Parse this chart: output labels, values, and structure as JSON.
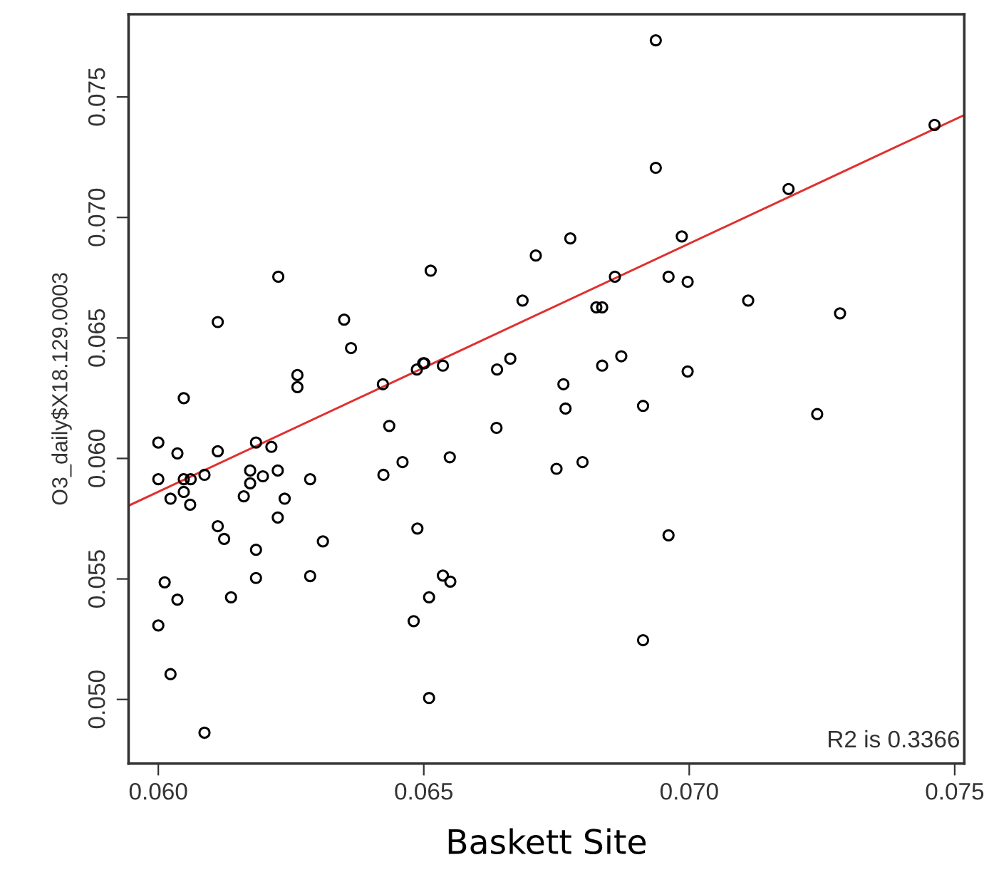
{
  "chart_data": {
    "type": "scatter",
    "xlabel": "Baskett Site",
    "ylabel": "O3_daily$X18.129.0003",
    "annotations": [
      "R2 is 0.3366"
    ],
    "grid": false,
    "legend": false,
    "xlim": [
      0.05944,
      0.07518
    ],
    "ylim": [
      0.04734,
      0.07843
    ],
    "xticks": [
      {
        "value": 0.06,
        "label": "0.060"
      },
      {
        "value": 0.065,
        "label": "0.065"
      },
      {
        "value": 0.07,
        "label": "0.070"
      },
      {
        "value": 0.075,
        "label": "0.075"
      }
    ],
    "yticks": [
      {
        "value": 0.05,
        "label": "0.050"
      },
      {
        "value": 0.055,
        "label": "0.055"
      },
      {
        "value": 0.06,
        "label": "0.060"
      },
      {
        "value": 0.065,
        "label": "0.065"
      },
      {
        "value": 0.07,
        "label": "0.070"
      },
      {
        "value": 0.075,
        "label": "0.075"
      }
    ],
    "series": [
      {
        "marker": "circle",
        "color": "#000000",
        "x": [
          0.06937,
          0.06937,
          0.06776,
          0.06711,
          0.06986,
          0.06513,
          0.0686,
          0.06961,
          0.06997,
          0.06686,
          0.06825,
          0.06836,
          0.06501,
          0.06536,
          0.06663,
          0.06638,
          0.06836,
          0.06872,
          0.06997,
          0.06763,
          0.06226,
          0.06112,
          0.0635,
          0.06363,
          0.06262,
          0.06262,
          0.06048,
          0.06423,
          0.06487,
          0.06499,
          0.07187,
          0.07462,
          0.07111,
          0.07284,
          0.06435,
          0.06,
          0.06036,
          0.06112,
          0.06184,
          0.06213,
          0.06,
          0.06048,
          0.06061,
          0.06087,
          0.06173,
          0.06197,
          0.06225,
          0.06173,
          0.06286,
          0.06424,
          0.0646,
          0.06023,
          0.06048,
          0.0606,
          0.06161,
          0.06238,
          0.06225,
          0.06112,
          0.06124,
          0.06184,
          0.0631,
          0.06488,
          0.06012,
          0.06036,
          0.06137,
          0.06184,
          0.06286,
          0.06,
          0.06481,
          0.0651,
          0.06023,
          0.0651,
          0.06087,
          0.06767,
          0.06913,
          0.06637,
          0.06549,
          0.0675,
          0.06799,
          0.06961,
          0.06536,
          0.0655,
          0.06913,
          0.07241
        ],
        "values": [
          0.07735,
          0.07206,
          0.06913,
          0.06842,
          0.06921,
          0.06779,
          0.06754,
          0.06754,
          0.06733,
          0.06655,
          0.06627,
          0.06627,
          0.06395,
          0.06385,
          0.06414,
          0.06369,
          0.06385,
          0.06424,
          0.06361,
          0.06308,
          0.06754,
          0.06566,
          0.06576,
          0.06458,
          0.06346,
          0.06296,
          0.0625,
          0.06308,
          0.06369,
          0.06395,
          0.07118,
          0.07384,
          0.06655,
          0.06602,
          0.06135,
          0.06066,
          0.06021,
          0.0603,
          0.06066,
          0.06048,
          0.05914,
          0.05914,
          0.05914,
          0.05932,
          0.0595,
          0.05926,
          0.0595,
          0.05897,
          0.05914,
          0.05932,
          0.05985,
          0.05833,
          0.05861,
          0.05808,
          0.05843,
          0.05833,
          0.05755,
          0.05719,
          0.05666,
          0.05621,
          0.05656,
          0.05709,
          0.05486,
          0.05414,
          0.05424,
          0.05504,
          0.05512,
          0.05307,
          0.05325,
          0.05424,
          0.05105,
          0.05006,
          0.04862,
          0.06207,
          0.06218,
          0.06127,
          0.06005,
          0.05957,
          0.05985,
          0.05681,
          0.05514,
          0.05489,
          0.05246,
          0.06184
        ]
      },
      {
        "type": "line",
        "color": "#e03030",
        "x": [
          0.05944,
          0.07518
        ],
        "values": [
          0.05804,
          0.07425
        ]
      }
    ]
  }
}
